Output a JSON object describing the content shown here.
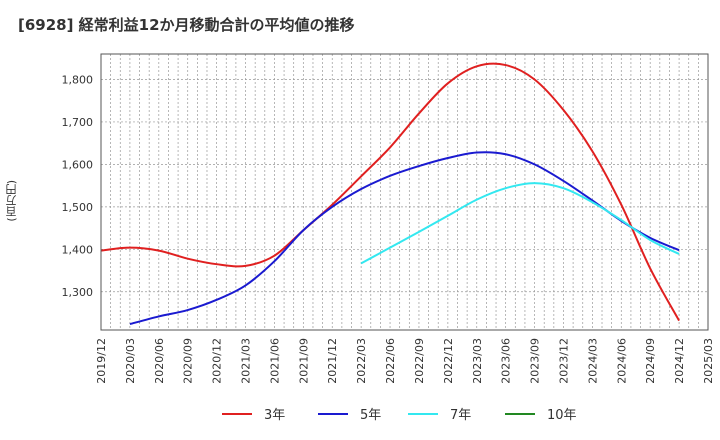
{
  "chart_data": {
    "type": "line",
    "title": "[6928]  経常利益12か月移動合計の平均値の推移",
    "ylabel": "(百万円)",
    "xlabel": "",
    "ylim": [
      1210,
      1860
    ],
    "yticks": [
      1300,
      1400,
      1500,
      1600,
      1700,
      1800
    ],
    "ytick_labels": [
      "1,300",
      "1,400",
      "1,500",
      "1,600",
      "1,700",
      "1,800"
    ],
    "x_tick_labels": [
      "2019/12",
      "2020/03",
      "2020/06",
      "2020/09",
      "2020/12",
      "2021/03",
      "2021/06",
      "2021/09",
      "2021/12",
      "2022/03",
      "2022/06",
      "2022/09",
      "2022/12",
      "2023/03",
      "2023/06",
      "2023/09",
      "2023/12",
      "2024/03",
      "2024/06",
      "2024/09",
      "2024/12",
      "2025/03"
    ],
    "grid": true,
    "legend_position": "bottom",
    "series": [
      {
        "name": "3年",
        "color": "#e02020",
        "x": [
          "2019/12",
          "2020/03",
          "2020/06",
          "2020/09",
          "2020/12",
          "2021/03",
          "2021/06",
          "2021/09",
          "2021/12",
          "2022/03",
          "2022/06",
          "2022/09",
          "2022/12",
          "2023/03",
          "2023/06",
          "2023/09",
          "2023/12",
          "2024/03",
          "2024/06",
          "2024/09",
          "2024/12"
        ],
        "values": [
          1397,
          1404,
          1397,
          1378,
          1365,
          1361,
          1385,
          1445,
          1505,
          1572,
          1640,
          1720,
          1791,
          1831,
          1834,
          1800,
          1728,
          1631,
          1505,
          1355,
          1232
        ]
      },
      {
        "name": "5年",
        "color": "#1a1ad0",
        "x": [
          "2020/03",
          "2020/06",
          "2020/09",
          "2020/12",
          "2021/03",
          "2021/06",
          "2021/09",
          "2021/12",
          "2022/03",
          "2022/06",
          "2022/09",
          "2022/12",
          "2023/03",
          "2023/06",
          "2023/09",
          "2023/12",
          "2024/03",
          "2024/06",
          "2024/09",
          "2024/12"
        ],
        "values": [
          1224,
          1242,
          1257,
          1281,
          1315,
          1372,
          1445,
          1500,
          1542,
          1573,
          1596,
          1615,
          1628,
          1624,
          1600,
          1561,
          1515,
          1467,
          1427,
          1398
        ]
      },
      {
        "name": "7年",
        "color": "#33e8f0",
        "x": [
          "2022/03",
          "2022/06",
          "2022/09",
          "2022/12",
          "2023/03",
          "2023/06",
          "2023/09",
          "2023/12",
          "2024/03",
          "2024/06",
          "2024/09",
          "2024/12"
        ],
        "values": [
          1367,
          1404,
          1441,
          1479,
          1517,
          1544,
          1556,
          1544,
          1511,
          1469,
          1422,
          1389
        ]
      },
      {
        "name": "10年",
        "color": "#228822",
        "x": [],
        "values": []
      }
    ]
  }
}
